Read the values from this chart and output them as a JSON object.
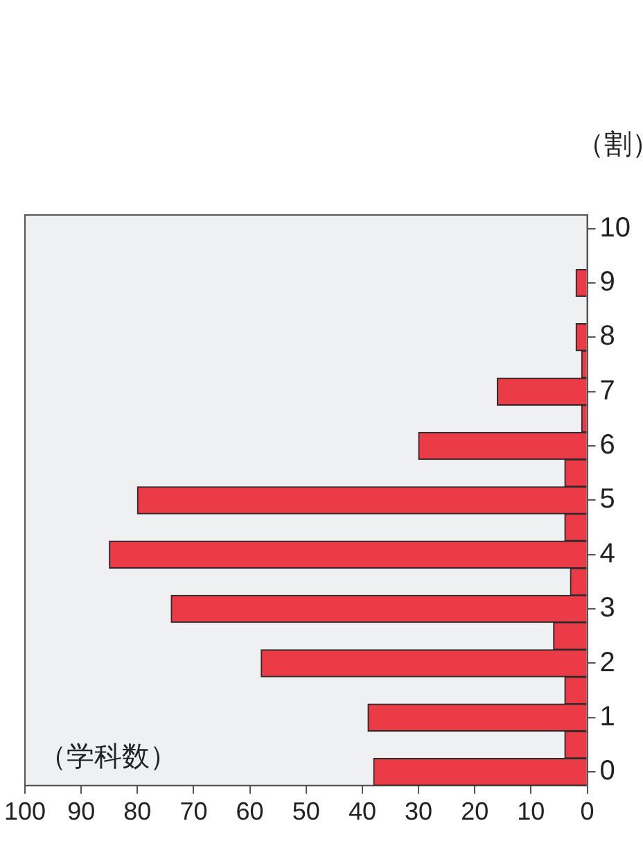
{
  "chart_data": {
    "type": "bar",
    "orientation": "horizontal",
    "xlabel": "（学科数）",
    "ylabel": "（割）",
    "categories": [
      "10",
      null,
      "9",
      null,
      "8",
      null,
      "7",
      null,
      "6",
      null,
      "5",
      null,
      "4",
      null,
      "3",
      null,
      "2",
      null,
      "1",
      null,
      "0"
    ],
    "values": [
      0,
      0,
      2,
      0,
      2,
      1,
      16,
      1,
      30,
      4,
      80,
      4,
      85,
      3,
      74,
      6,
      58,
      4,
      39,
      4,
      38
    ],
    "color": "#ea3b47",
    "xlim": [
      100,
      0
    ],
    "xticks": [
      100,
      90,
      80,
      70,
      60,
      50,
      40,
      30,
      20,
      10,
      0
    ],
    "grid": false,
    "legend": false
  }
}
